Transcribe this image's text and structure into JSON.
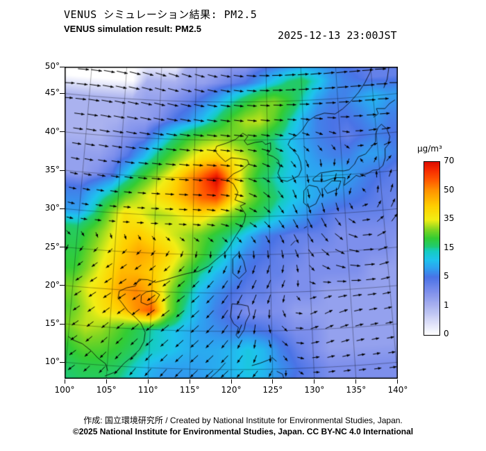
{
  "header": {
    "title_jp": "VENUS シミュレーション結果: PM2.5",
    "title_en": "VENUS simulation result: PM2.5",
    "timestamp": "2025-12-13 23:00JST"
  },
  "axes": {
    "lat_ticks": [
      "50°",
      "45°",
      "40°",
      "35°",
      "30°",
      "25°",
      "20°",
      "15°",
      "10°"
    ],
    "lon_ticks": [
      "100°",
      "105°",
      "110°",
      "115°",
      "120°",
      "125°",
      "130°",
      "135°",
      "140°"
    ]
  },
  "colorbar": {
    "unit": "μg/m³",
    "tick_labels": [
      "70",
      "50",
      "35",
      "15",
      "5",
      "1",
      "0"
    ],
    "tick_levels": [
      70,
      50,
      35,
      15,
      5,
      1,
      0
    ],
    "scale_levels": [
      0,
      1,
      5,
      15,
      35,
      50,
      70
    ],
    "color_stops": [
      [
        0,
        "#ffffff"
      ],
      [
        1,
        "#aab2ef"
      ],
      [
        3,
        "#7d8fec"
      ],
      [
        5,
        "#4a73e6"
      ],
      [
        8,
        "#2f9ff0"
      ],
      [
        11,
        "#1ec3ee"
      ],
      [
        14,
        "#15ccc2"
      ],
      [
        16,
        "#1fca74"
      ],
      [
        22,
        "#33cc33"
      ],
      [
        28,
        "#7fd622"
      ],
      [
        35,
        "#f2ee15"
      ],
      [
        42,
        "#ffcf00"
      ],
      [
        50,
        "#ff9500"
      ],
      [
        58,
        "#ff5500"
      ],
      [
        65,
        "#f52800"
      ],
      [
        70,
        "#dd0f00"
      ],
      [
        78,
        "#a50000"
      ]
    ]
  },
  "footer": {
    "credit": "作成: 国立環境研究所 / Created by National Institute for Environmental Studies, Japan.",
    "license": "©2025 National Institute for Environmental Studies, Japan. CC BY-NC 4.0 International"
  },
  "chart_data": {
    "type": "heatmap",
    "title": "VENUS simulation result: PM2.5",
    "unit": "μg/m³",
    "lon_range": [
      100,
      142
    ],
    "lat_range": [
      8,
      51
    ],
    "grid_lons": [
      100,
      102,
      104,
      106,
      108,
      110,
      112,
      114,
      116,
      118,
      120,
      122,
      124,
      126,
      128,
      130,
      132,
      134,
      136,
      138,
      140,
      142
    ],
    "grid_lats": [
      50,
      47.5,
      45,
      42.5,
      40,
      37.5,
      35,
      32.5,
      30,
      27.5,
      25,
      22.5,
      20,
      17.5,
      15,
      12.5,
      10,
      7.5
    ],
    "values": [
      [
        0,
        0,
        0,
        0,
        0,
        0,
        0,
        1,
        1,
        1,
        2,
        2,
        3,
        4,
        5,
        6,
        6,
        6,
        5,
        4,
        4,
        4
      ],
      [
        0,
        0,
        0,
        0,
        1,
        1,
        1,
        2,
        2,
        3,
        4,
        5,
        8,
        12,
        16,
        18,
        13,
        8,
        6,
        5,
        4,
        4
      ],
      [
        1,
        1,
        1,
        1,
        2,
        2,
        3,
        4,
        6,
        9,
        14,
        20,
        26,
        28,
        22,
        14,
        8,
        6,
        6,
        8,
        10,
        8
      ],
      [
        1,
        1,
        1,
        2,
        2,
        3,
        5,
        7,
        11,
        17,
        25,
        31,
        32,
        25,
        15,
        9,
        6,
        5,
        5,
        6,
        8,
        6
      ],
      [
        1,
        1,
        2,
        3,
        4,
        9,
        16,
        23,
        28,
        31,
        28,
        25,
        20,
        15,
        11,
        8,
        6,
        5,
        4,
        5,
        6,
        5
      ],
      [
        2,
        2,
        3,
        5,
        10,
        18,
        26,
        33,
        40,
        42,
        38,
        32,
        24,
        17,
        12,
        9,
        7,
        6,
        6,
        8,
        8,
        6
      ],
      [
        2,
        3,
        5,
        12,
        22,
        30,
        38,
        48,
        58,
        72,
        45,
        28,
        18,
        14,
        11,
        9,
        9,
        10,
        8,
        6,
        5,
        4
      ],
      [
        6,
        10,
        15,
        25,
        32,
        38,
        42,
        48,
        56,
        60,
        42,
        30,
        22,
        16,
        12,
        10,
        8,
        7,
        6,
        5,
        4,
        4
      ],
      [
        8,
        15,
        28,
        38,
        35,
        30,
        32,
        36,
        38,
        32,
        26,
        20,
        16,
        12,
        9,
        7,
        5,
        4,
        4,
        4,
        4,
        3
      ],
      [
        18,
        25,
        32,
        40,
        42,
        38,
        34,
        30,
        26,
        20,
        15,
        10,
        6,
        5,
        4,
        4,
        4,
        3,
        3,
        3,
        3,
        3
      ],
      [
        20,
        28,
        35,
        42,
        48,
        45,
        40,
        32,
        24,
        16,
        10,
        6,
        5,
        4,
        4,
        3,
        3,
        3,
        3,
        3,
        3,
        2
      ],
      [
        22,
        30,
        38,
        45,
        45,
        42,
        35,
        25,
        15,
        10,
        7,
        5,
        4,
        4,
        3,
        3,
        3,
        3,
        3,
        2,
        2,
        2
      ],
      [
        28,
        35,
        40,
        48,
        52,
        45,
        30,
        18,
        10,
        7,
        5,
        4,
        4,
        3,
        3,
        3,
        2,
        2,
        2,
        2,
        2,
        2
      ],
      [
        25,
        32,
        38,
        42,
        50,
        58,
        30,
        15,
        9,
        6,
        4,
        3,
        3,
        3,
        2,
        2,
        2,
        2,
        2,
        2,
        2,
        2
      ],
      [
        28,
        32,
        30,
        25,
        20,
        15,
        12,
        10,
        8,
        7,
        6,
        6,
        5,
        4,
        3,
        3,
        2,
        2,
        2,
        2,
        2,
        2
      ],
      [
        22,
        26,
        25,
        22,
        18,
        14,
        12,
        10,
        9,
        9,
        10,
        12,
        10,
        6,
        4,
        3,
        2,
        2,
        2,
        2,
        2,
        2
      ],
      [
        18,
        20,
        20,
        18,
        14,
        10,
        8,
        8,
        8,
        9,
        10,
        12,
        10,
        7,
        5,
        4,
        3,
        3,
        3,
        3,
        3,
        3
      ],
      [
        15,
        17,
        17,
        15,
        12,
        9,
        7,
        7,
        7,
        8,
        9,
        10,
        9,
        6,
        4,
        4,
        3,
        3,
        3,
        3,
        3,
        3
      ]
    ],
    "wind": {
      "style": "arrows",
      "features": [
        "westerly flow north of 35N",
        "northeasterly winter monsoon turning southwest over the South China Sea",
        "cyclonic vortex near 30N 137E east of Japan",
        "cyclonic swirl near 18N 127E east of Luzon"
      ]
    },
    "coastlines": [
      [
        [
          104.8,
          8.6
        ],
        [
          106.2,
          9.3
        ],
        [
          107.0,
          10.4
        ],
        [
          107.8,
          11.2
        ],
        [
          108.8,
          12.3
        ],
        [
          109.3,
          13.4
        ],
        [
          109.4,
          14.6
        ],
        [
          108.8,
          15.8
        ],
        [
          108.1,
          16.5
        ],
        [
          107.1,
          17.3
        ],
        [
          106.4,
          18.2
        ],
        [
          105.8,
          18.9
        ],
        [
          105.9,
          19.8
        ],
        [
          106.8,
          20.3
        ],
        [
          107.9,
          20.6
        ],
        [
          108.3,
          21.5
        ],
        [
          109.4,
          21.5
        ],
        [
          110.4,
          21.2
        ],
        [
          111.7,
          21.6
        ],
        [
          113.1,
          22.1
        ],
        [
          114.4,
          22.5
        ],
        [
          115.8,
          22.8
        ],
        [
          117.1,
          23.5
        ],
        [
          118.1,
          24.4
        ],
        [
          119.3,
          25.4
        ],
        [
          119.9,
          26.3
        ],
        [
          120.6,
          27.5
        ],
        [
          121.2,
          28.4
        ],
        [
          121.7,
          29.3
        ],
        [
          121.9,
          30.3
        ],
        [
          121.2,
          31.4
        ],
        [
          121.9,
          31.7
        ],
        [
          120.5,
          32.2
        ],
        [
          120.9,
          33.2
        ],
        [
          120.3,
          34.3
        ],
        [
          119.4,
          34.8
        ],
        [
          120.3,
          35.6
        ],
        [
          121.4,
          36.1
        ],
        [
          122.4,
          36.9
        ],
        [
          122.2,
          37.4
        ],
        [
          121.1,
          37.6
        ],
        [
          120.0,
          37.7
        ],
        [
          119.2,
          37.2
        ],
        [
          118.3,
          38.0
        ],
        [
          117.8,
          38.6
        ],
        [
          118.0,
          39.2
        ],
        [
          119.3,
          39.6
        ],
        [
          120.6,
          40.1
        ],
        [
          121.6,
          40.9
        ],
        [
          122.3,
          40.5
        ],
        [
          121.8,
          39.9
        ],
        [
          122.2,
          39.4
        ],
        [
          123.3,
          39.7
        ],
        [
          124.3,
          39.8
        ]
      ],
      [
        [
          124.3,
          39.8
        ],
        [
          124.7,
          39.4
        ],
        [
          125.4,
          39.6
        ],
        [
          125.4,
          38.7
        ],
        [
          124.9,
          38.1
        ],
        [
          125.7,
          37.8
        ],
        [
          126.4,
          37.3
        ],
        [
          126.6,
          36.4
        ],
        [
          126.3,
          35.6
        ],
        [
          126.7,
          34.7
        ],
        [
          127.5,
          34.5
        ],
        [
          128.5,
          34.9
        ],
        [
          129.1,
          35.2
        ],
        [
          129.5,
          36.0
        ],
        [
          129.4,
          37.0
        ],
        [
          129.1,
          37.8
        ],
        [
          128.4,
          38.6
        ],
        [
          127.8,
          39.3
        ],
        [
          128.1,
          39.9
        ],
        [
          129.1,
          40.5
        ],
        [
          129.8,
          41.1
        ],
        [
          130.7,
          42.3
        ],
        [
          131.8,
          42.9
        ],
        [
          133.0,
          43.2
        ],
        [
          134.5,
          43.0
        ],
        [
          135.6,
          43.6
        ],
        [
          136.8,
          44.5
        ],
        [
          138.0,
          45.6
        ],
        [
          139.0,
          46.8
        ],
        [
          139.8,
          48.0
        ],
        [
          140.5,
          49.3
        ],
        [
          141.0,
          50.6
        ]
      ],
      [
        [
          108.7,
          18.5
        ],
        [
          109.5,
          18.2
        ],
        [
          110.5,
          18.7
        ],
        [
          111.0,
          19.6
        ],
        [
          110.2,
          20.1
        ],
        [
          109.3,
          19.9
        ],
        [
          108.7,
          19.4
        ],
        [
          108.7,
          18.5
        ]
      ],
      [
        [
          120.2,
          22.6
        ],
        [
          121.0,
          21.9
        ],
        [
          121.9,
          22.8
        ],
        [
          121.6,
          24.2
        ],
        [
          121.0,
          25.3
        ],
        [
          120.2,
          24.5
        ],
        [
          120.2,
          23.3
        ],
        [
          120.2,
          22.6
        ]
      ],
      [
        [
          129.6,
          31.6
        ],
        [
          130.3,
          31.0
        ],
        [
          131.2,
          31.4
        ],
        [
          131.9,
          32.7
        ],
        [
          131.5,
          33.6
        ],
        [
          130.4,
          33.9
        ],
        [
          129.7,
          33.2
        ],
        [
          129.6,
          31.6
        ]
      ],
      [
        [
          132.8,
          32.7
        ],
        [
          134.3,
          33.2
        ],
        [
          134.7,
          34.2
        ],
        [
          133.5,
          34.3
        ],
        [
          132.4,
          33.4
        ],
        [
          132.8,
          32.7
        ]
      ],
      [
        [
          131.0,
          34.4
        ],
        [
          132.5,
          34.3
        ],
        [
          134.0,
          34.7
        ],
        [
          135.3,
          34.6
        ],
        [
          135.1,
          33.6
        ],
        [
          136.0,
          34.2
        ],
        [
          136.8,
          34.8
        ],
        [
          137.3,
          34.6
        ],
        [
          138.5,
          35.0
        ],
        [
          139.1,
          35.3
        ],
        [
          139.8,
          35.3
        ],
        [
          140.5,
          35.8
        ],
        [
          140.9,
          36.8
        ],
        [
          141.0,
          38.0
        ],
        [
          141.5,
          38.5
        ],
        [
          141.8,
          39.5
        ],
        [
          141.5,
          40.5
        ],
        [
          140.8,
          41.2
        ],
        [
          140.3,
          40.8
        ],
        [
          139.9,
          40.0
        ],
        [
          139.8,
          39.0
        ],
        [
          139.0,
          38.2
        ],
        [
          138.3,
          37.5
        ],
        [
          137.3,
          37.2
        ],
        [
          137.0,
          36.8
        ],
        [
          136.7,
          36.3
        ],
        [
          135.9,
          35.6
        ],
        [
          135.2,
          35.5
        ],
        [
          134.0,
          35.6
        ],
        [
          133.0,
          35.5
        ],
        [
          132.0,
          35.4
        ],
        [
          131.0,
          34.7
        ],
        [
          131.0,
          34.4
        ]
      ],
      [
        [
          139.8,
          42.2
        ],
        [
          140.5,
          42.6
        ],
        [
          140.3,
          43.3
        ],
        [
          141.5,
          43.2
        ],
        [
          142.2,
          43.8
        ],
        [
          143.0,
          44.2
        ]
      ],
      [
        [
          141.6,
          45.9
        ],
        [
          142.2,
          47.0
        ],
        [
          142.6,
          48.5
        ]
      ],
      [
        [
          120.1,
          18.6
        ],
        [
          121.2,
          18.5
        ],
        [
          122.1,
          18.3
        ],
        [
          122.3,
          17.2
        ],
        [
          121.8,
          16.2
        ],
        [
          121.6,
          15.2
        ],
        [
          120.9,
          14.1
        ],
        [
          120.6,
          14.5
        ],
        [
          120.9,
          15.5
        ],
        [
          120.3,
          16.0
        ],
        [
          119.9,
          16.9
        ],
        [
          120.1,
          18.6
        ]
      ],
      [
        [
          122.5,
          10.5
        ],
        [
          123.5,
          10.8
        ],
        [
          124.5,
          11.2
        ],
        [
          125.0,
          11.5
        ],
        [
          125.5,
          11.0
        ]
      ],
      [
        [
          117.3,
          8.7
        ],
        [
          118.5,
          9.9
        ],
        [
          119.3,
          10.9
        ]
      ],
      [
        [
          125.5,
          9.7
        ],
        [
          126.2,
          9.3
        ],
        [
          126.4,
          8.4
        ]
      ],
      [
        [
          100.0,
          13.4
        ],
        [
          100.6,
          13.0
        ],
        [
          101.8,
          12.6
        ],
        [
          102.9,
          11.8
        ],
        [
          103.8,
          10.9
        ],
        [
          104.8,
          10.2
        ],
        [
          105.1,
          9.3
        ]
      ],
      [
        [
          127.7,
          26.1
        ],
        [
          128.3,
          26.7
        ]
      ],
      [
        [
          129.5,
          28.3
        ],
        [
          129.9,
          28.5
        ]
      ]
    ]
  }
}
